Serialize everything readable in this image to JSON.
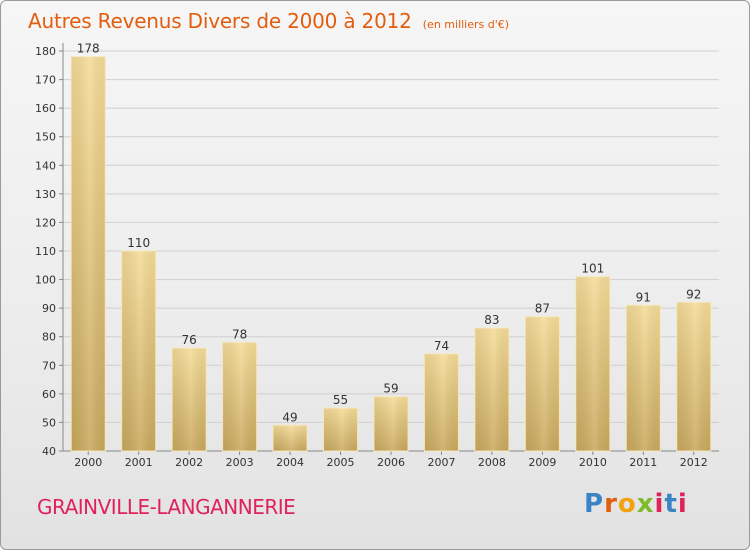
{
  "title": "Autres Revenus Divers de 2000 à 2012",
  "unit_note": "(en milliers d'€)",
  "commune": "GRAINVILLE-LANGANNERIE",
  "logo": {
    "letters": [
      "P",
      "r",
      "o",
      "x",
      "i",
      "t",
      "i"
    ],
    "colors": [
      "#3a84c6",
      "#e35d0e",
      "#f2a20e",
      "#7dbb2c",
      "#e0225a",
      "#3a84c6",
      "#e0225a"
    ]
  },
  "chart_data": {
    "type": "bar",
    "categories": [
      "2000",
      "2001",
      "2002",
      "2003",
      "2004",
      "2005",
      "2006",
      "2007",
      "2008",
      "2009",
      "2010",
      "2011",
      "2012"
    ],
    "values": [
      178,
      110,
      76,
      78,
      49,
      55,
      59,
      74,
      83,
      87,
      101,
      91,
      92
    ],
    "data_labels": [
      "178",
      "110",
      "76",
      "78",
      "49",
      "55",
      "59",
      "74",
      "83",
      "87",
      "101",
      "91",
      "92"
    ],
    "ylim": [
      40,
      180
    ],
    "yticks": [
      40,
      50,
      60,
      70,
      80,
      90,
      100,
      110,
      120,
      130,
      140,
      150,
      160,
      170,
      180
    ],
    "grid": true,
    "bar_color": "#e8c97a"
  }
}
